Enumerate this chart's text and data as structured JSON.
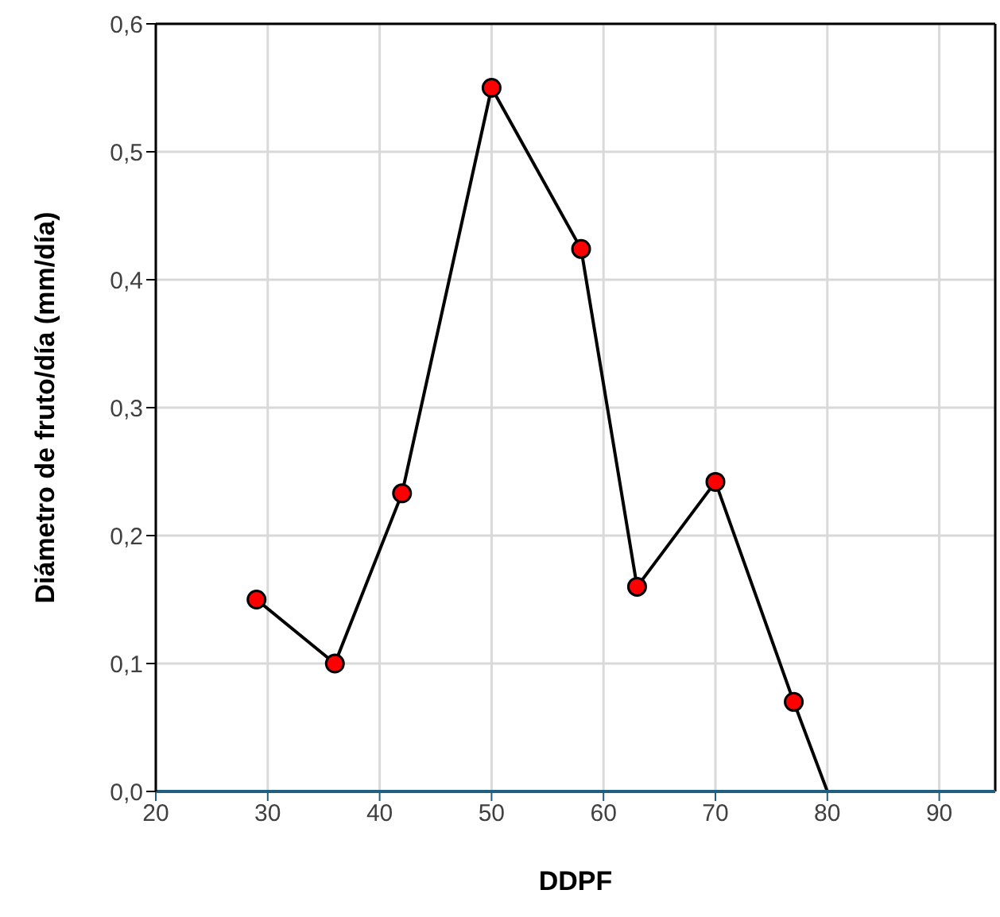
{
  "chart_data": {
    "type": "line",
    "xlabel": "DDPF",
    "ylabel": "Diámetro de fruto/día (mm/día)",
    "xlim": [
      20,
      95
    ],
    "xticks": [
      20,
      30,
      40,
      50,
      60,
      70,
      80,
      90
    ],
    "ylim": [
      0,
      0.6
    ],
    "yticks": [
      {
        "value": 0,
        "label": "0,0"
      },
      {
        "value": 0.1,
        "label": "0,1"
      },
      {
        "value": 0.2,
        "label": "0,2"
      },
      {
        "value": 0.3,
        "label": "0,3"
      },
      {
        "value": 0.4,
        "label": "0,4"
      },
      {
        "value": 0.5,
        "label": "0,5"
      },
      {
        "value": 0.6,
        "label": "0,6"
      }
    ],
    "grid": true,
    "line_style": "solid",
    "series": [
      {
        "color": "#ff0000",
        "marker": "circle",
        "x": [
          29,
          36,
          42,
          50,
          58,
          63,
          70,
          77
        ],
        "values": [
          0.15,
          0.1,
          0.233,
          0.55,
          0.424,
          0.16,
          0.242,
          0.07
        ]
      },
      {
        "color": "#000000",
        "marker": "none",
        "x": [
          77,
          80
        ],
        "values": [
          0.07,
          0
        ]
      }
    ]
  }
}
